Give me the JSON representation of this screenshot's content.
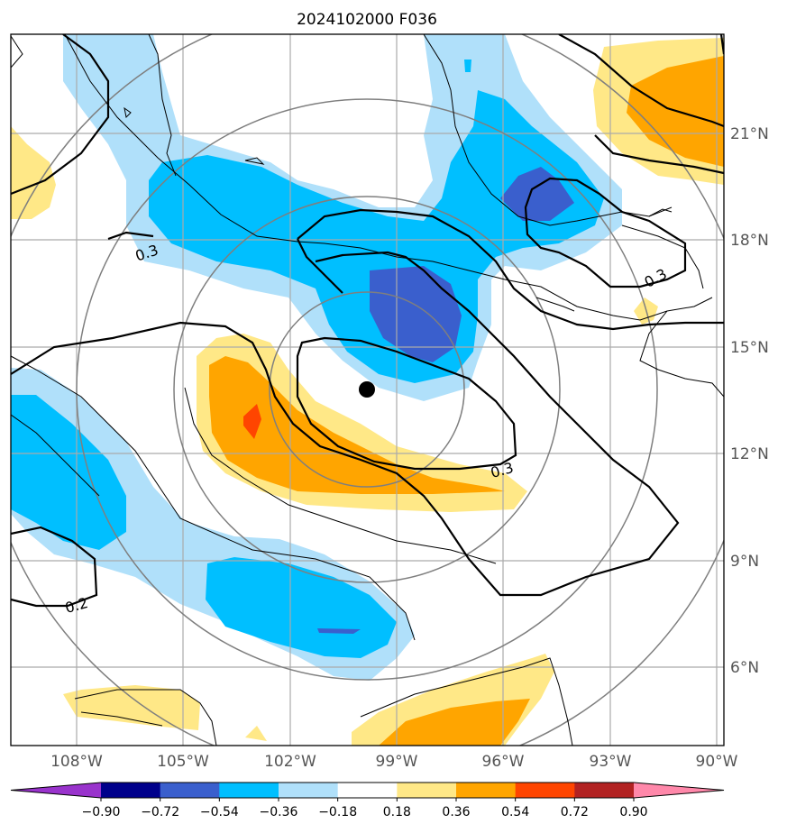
{
  "chart_data": {
    "type": "heatmap",
    "title": "2024102000 F036",
    "x_ticks": [
      "108°W",
      "105°W",
      "102°W",
      "99°W",
      "96°W",
      "93°W",
      "90°W"
    ],
    "y_ticks": [
      "21°N",
      "18°N",
      "15°N",
      "12°N",
      "9°N",
      "6°N"
    ],
    "x_values": [
      -108,
      -105,
      -102,
      -99,
      -96,
      -93,
      -90
    ],
    "y_values": [
      21,
      18,
      15,
      12,
      9,
      6
    ],
    "xlim": [
      -110.2,
      -90.2
    ],
    "ylim": [
      3.8,
      23.8
    ],
    "grid": true,
    "colorbar": {
      "levels": [
        -0.9,
        -0.72,
        -0.54,
        -0.36,
        -0.18,
        0.18,
        0.36,
        0.54,
        0.72,
        0.9
      ],
      "labels": [
        "−0.90",
        "−0.72",
        "−0.54",
        "−0.36",
        "−0.18",
        "0.18",
        "0.36",
        "0.54",
        "0.72",
        "0.90"
      ],
      "colors": [
        "#9933cc",
        "#00008b",
        "#3a5fcd",
        "#00bfff",
        "#b0e0fa",
        "#ffffff",
        "#ffe887",
        "#ffa500",
        "#ff4500",
        "#b22222",
        "#ff88aa"
      ],
      "extend": "both"
    },
    "contour_labels": [
      "0.3",
      "0.3",
      "0.3",
      "0.2"
    ],
    "storm_center": {
      "lon": -99.8,
      "lat": 13.7
    },
    "range_rings": "concentric circles centered on storm"
  }
}
